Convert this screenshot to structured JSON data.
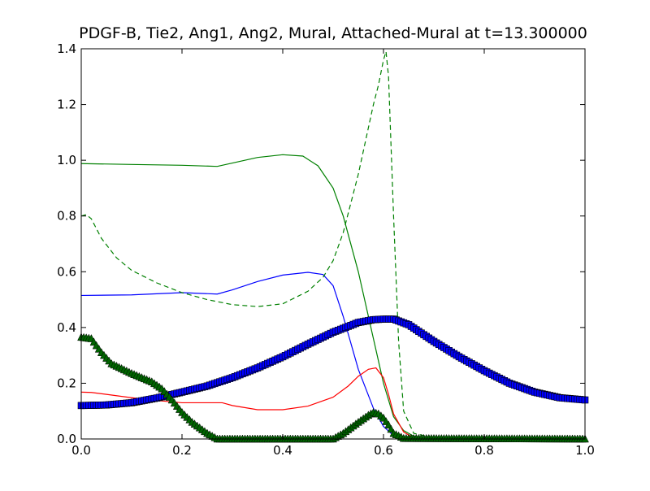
{
  "chart_data": {
    "type": "line",
    "title": "PDGF-B, Tie2, Ang1, Ang2, Mural, Attached-Mural at t=13.300000",
    "xlabel": "",
    "ylabel": "",
    "xlim": [
      0.0,
      1.0
    ],
    "ylim": [
      0.0,
      1.4
    ],
    "x_ticks": [
      "0.0",
      "0.2",
      "0.4",
      "0.6",
      "0.8",
      "1.0"
    ],
    "y_ticks": [
      "0.0",
      "0.2",
      "0.4",
      "0.6",
      "0.8",
      "1.0",
      "1.2",
      "1.4"
    ],
    "grid": false,
    "legend": "none",
    "series": [
      {
        "color": "#0000ff",
        "style": "solid",
        "x": [
          0.0,
          0.1,
          0.2,
          0.27,
          0.3,
          0.35,
          0.4,
          0.45,
          0.48,
          0.5,
          0.52,
          0.55,
          0.58,
          0.6,
          0.62,
          0.64,
          0.65,
          1.0
        ],
        "y": [
          0.515,
          0.517,
          0.525,
          0.52,
          0.535,
          0.565,
          0.588,
          0.598,
          0.59,
          0.55,
          0.44,
          0.25,
          0.11,
          0.045,
          0.012,
          0.002,
          0.0,
          0.0
        ]
      },
      {
        "color": "#008000",
        "style": "solid",
        "x": [
          0.0,
          0.1,
          0.2,
          0.27,
          0.3,
          0.35,
          0.4,
          0.44,
          0.47,
          0.5,
          0.52,
          0.55,
          0.58,
          0.6,
          0.62,
          0.64,
          0.66,
          0.7,
          1.0
        ],
        "y": [
          0.988,
          0.985,
          0.982,
          0.978,
          0.99,
          1.01,
          1.02,
          1.015,
          0.98,
          0.9,
          0.8,
          0.6,
          0.36,
          0.2,
          0.08,
          0.03,
          0.01,
          0.002,
          0.0
        ]
      },
      {
        "color": "#008000",
        "style": "dashed",
        "x": [
          0.0,
          0.01,
          0.02,
          0.04,
          0.07,
          0.1,
          0.15,
          0.2,
          0.25,
          0.3,
          0.35,
          0.4,
          0.45,
          0.48,
          0.5,
          0.52,
          0.55,
          0.58,
          0.59,
          0.6,
          0.605,
          0.61,
          0.62,
          0.63,
          0.64,
          0.66,
          0.7,
          1.0
        ],
        "y": [
          0.8,
          0.805,
          0.79,
          0.72,
          0.65,
          0.605,
          0.56,
          0.525,
          0.5,
          0.482,
          0.475,
          0.485,
          0.53,
          0.58,
          0.64,
          0.74,
          0.95,
          1.2,
          1.27,
          1.36,
          1.39,
          1.3,
          0.8,
          0.35,
          0.1,
          0.02,
          0.005,
          0.0
        ]
      },
      {
        "color": "#ff0000",
        "style": "solid",
        "x": [
          0.0,
          0.02,
          0.05,
          0.1,
          0.15,
          0.2,
          0.25,
          0.28,
          0.3,
          0.35,
          0.4,
          0.45,
          0.5,
          0.53,
          0.55,
          0.57,
          0.585,
          0.6,
          0.61,
          0.62,
          0.64,
          0.66,
          1.0
        ],
        "y": [
          0.168,
          0.167,
          0.16,
          0.148,
          0.138,
          0.13,
          0.13,
          0.13,
          0.12,
          0.105,
          0.105,
          0.118,
          0.15,
          0.19,
          0.225,
          0.25,
          0.255,
          0.22,
          0.16,
          0.09,
          0.025,
          0.004,
          0.0
        ]
      },
      {
        "color": "#0000ff",
        "style": "square-markers",
        "x": [
          0.0,
          0.05,
          0.1,
          0.15,
          0.2,
          0.25,
          0.3,
          0.35,
          0.4,
          0.45,
          0.5,
          0.55,
          0.58,
          0.6,
          0.62,
          0.65,
          0.7,
          0.75,
          0.8,
          0.85,
          0.9,
          0.95,
          1.0
        ],
        "y": [
          0.12,
          0.122,
          0.13,
          0.147,
          0.168,
          0.19,
          0.22,
          0.255,
          0.295,
          0.34,
          0.383,
          0.418,
          0.428,
          0.43,
          0.43,
          0.41,
          0.35,
          0.295,
          0.245,
          0.2,
          0.168,
          0.148,
          0.14
        ]
      },
      {
        "color": "#006400",
        "style": "triangle-markers",
        "x": [
          0.0,
          0.02,
          0.04,
          0.06,
          0.1,
          0.14,
          0.16,
          0.18,
          0.2,
          0.22,
          0.25,
          0.27,
          0.3,
          0.5,
          0.52,
          0.55,
          0.57,
          0.58,
          0.59,
          0.6,
          0.61,
          0.62,
          0.64,
          1.0
        ],
        "y": [
          0.365,
          0.36,
          0.31,
          0.27,
          0.235,
          0.205,
          0.18,
          0.14,
          0.095,
          0.06,
          0.02,
          0.0,
          0.0,
          0.0,
          0.02,
          0.06,
          0.085,
          0.095,
          0.09,
          0.075,
          0.05,
          0.02,
          0.002,
          0.0
        ]
      }
    ]
  }
}
